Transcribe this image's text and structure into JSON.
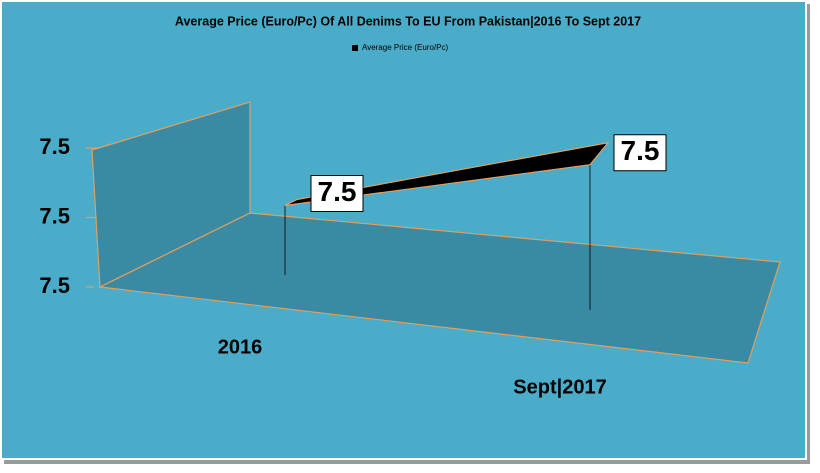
{
  "chart_data": {
    "type": "line",
    "title": "Average Price (Euro/Pc) Of All Denims To EU From Pakistan|2016 To Sept 2017",
    "categories": [
      "2016",
      "Sept|2017"
    ],
    "series": [
      {
        "name": "Average Price (Euro/Pc)",
        "color": "#000000",
        "values": [
          7.5,
          7.5
        ]
      }
    ],
    "ylim": [
      7.46,
      7.54
    ],
    "yticks": [
      {
        "value": 7.46,
        "label": "7.5"
      },
      {
        "value": 7.5,
        "label": "7.5"
      },
      {
        "value": 7.54,
        "label": "7.5"
      }
    ],
    "legend": "top"
  }
}
